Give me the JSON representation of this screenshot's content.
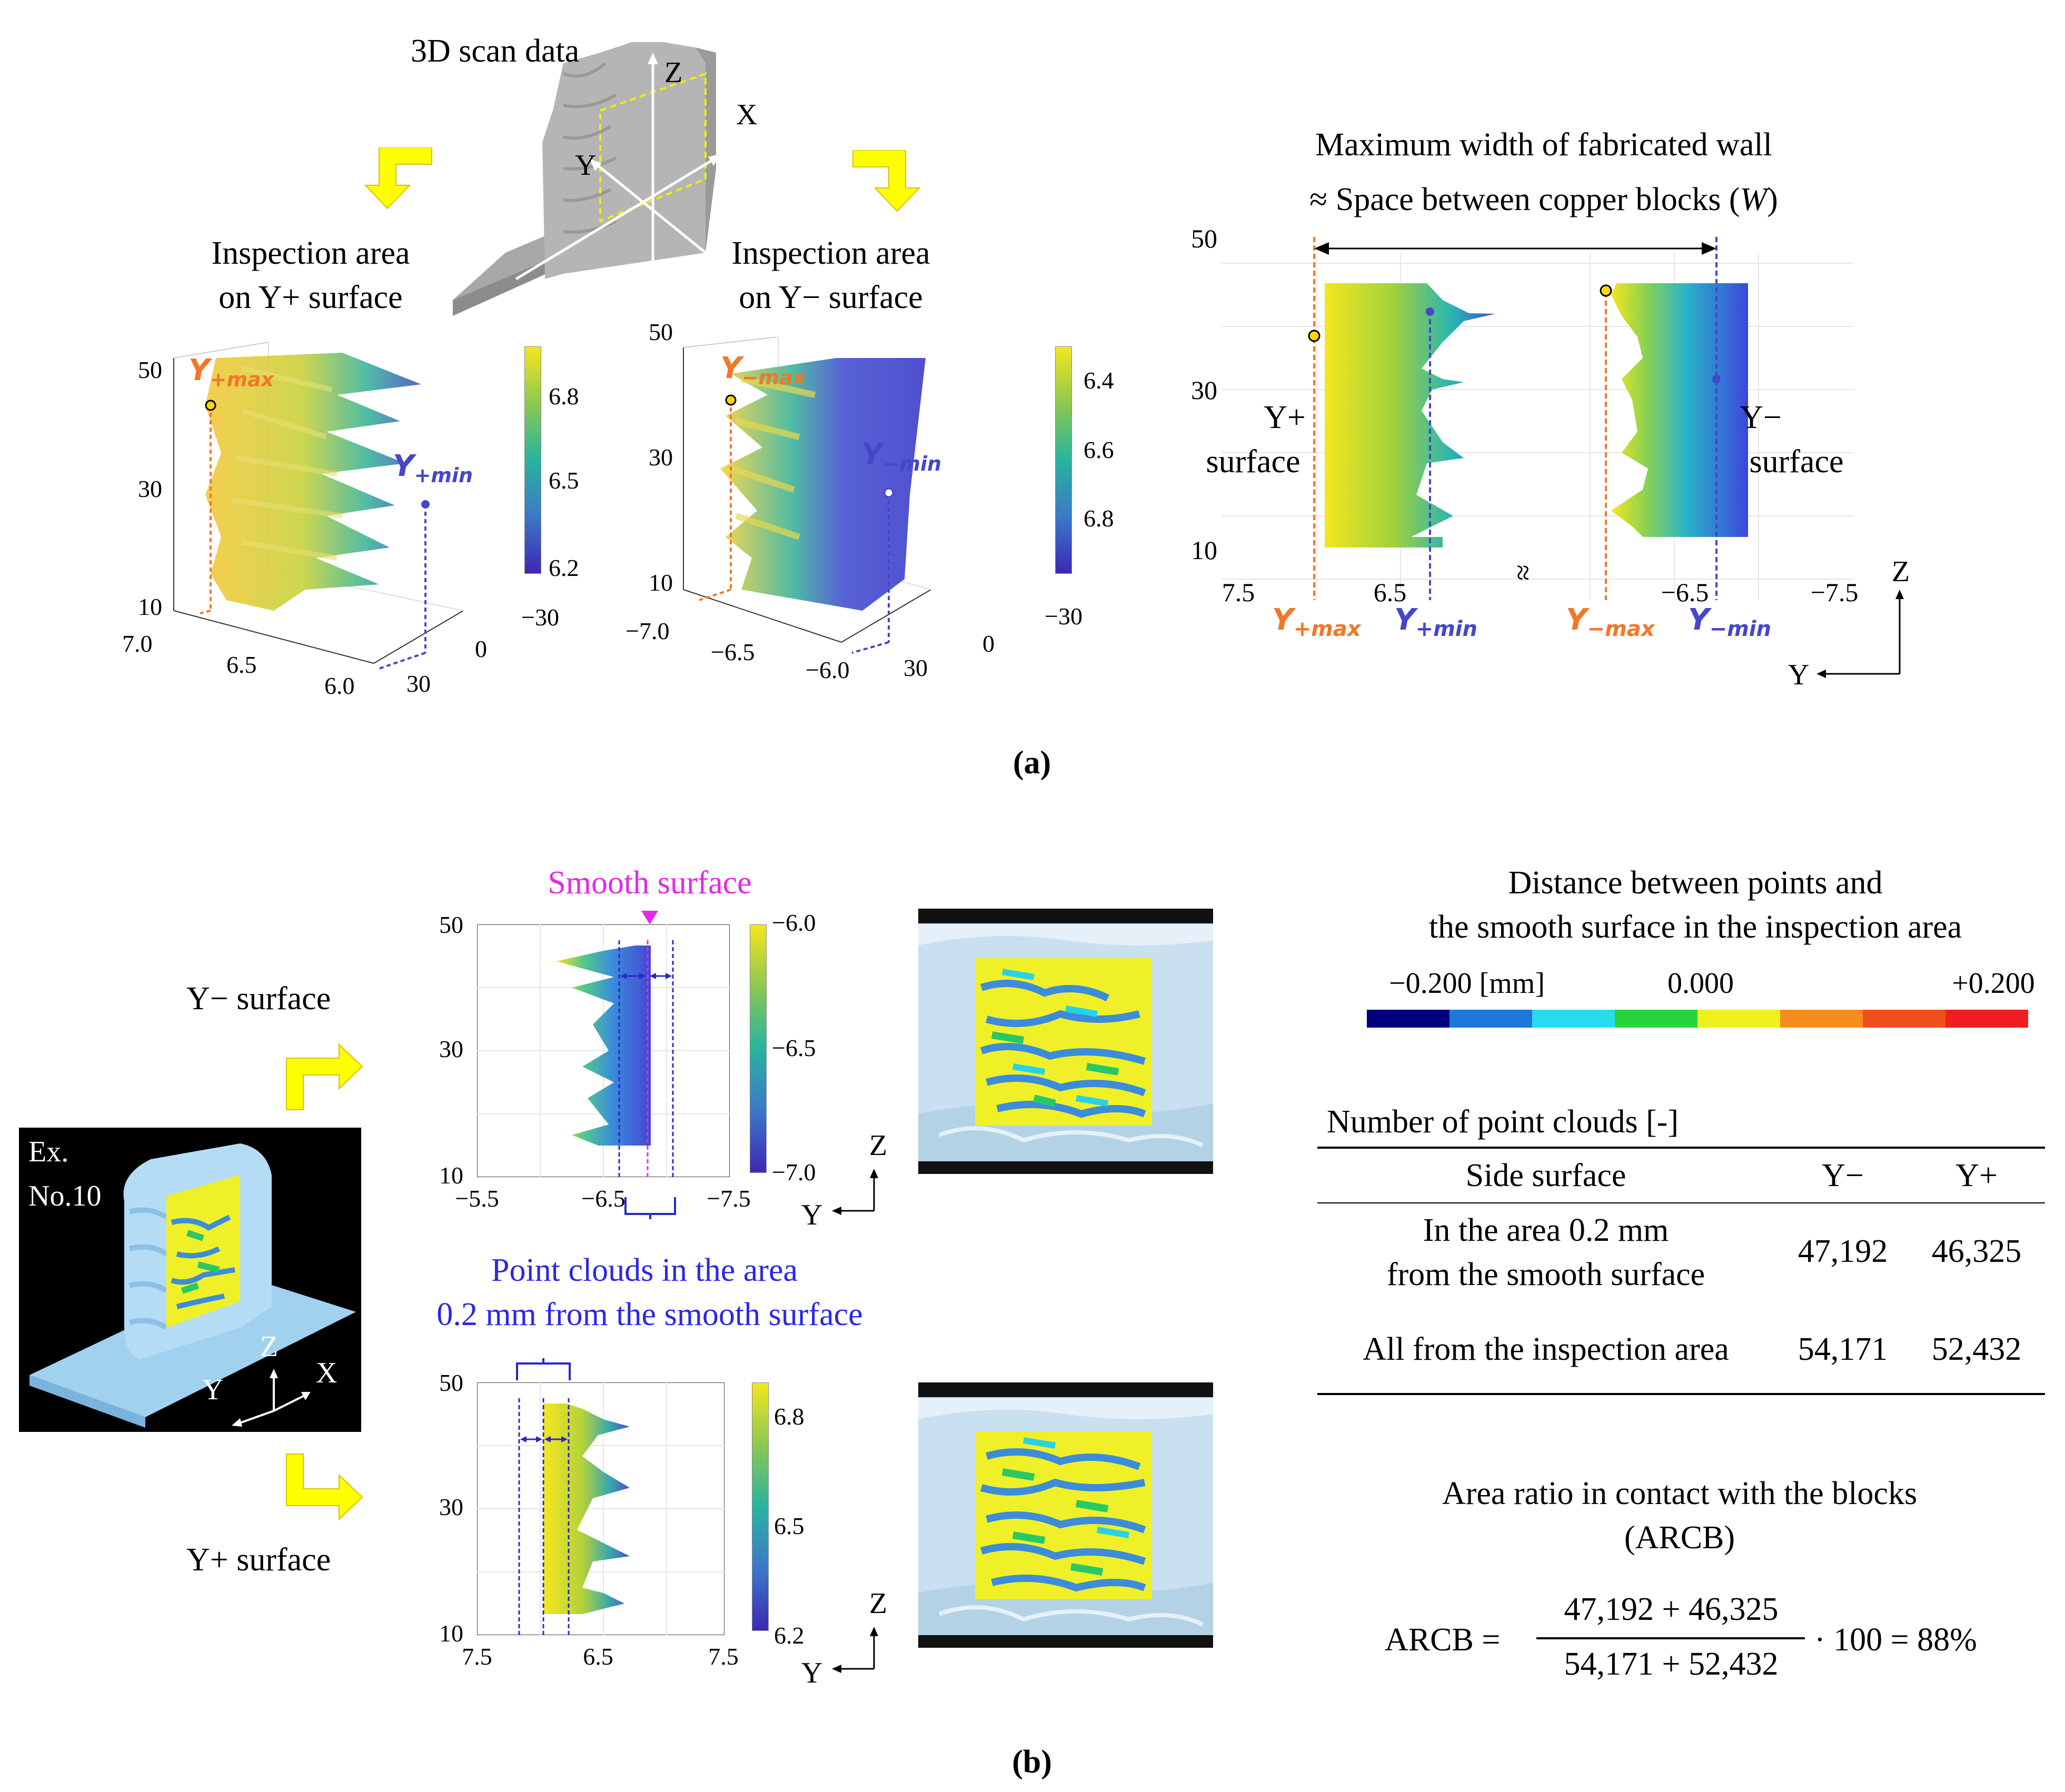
{
  "figure": {
    "panel_a_label": "(a)",
    "panel_b_label": "(b)",
    "panel_a": {
      "scan_title": "3D scan data",
      "axis_z": "Z",
      "axis_x": "X",
      "axis_y": "Y",
      "insp_plus": [
        "Inspection area",
        "on Y+ surface"
      ],
      "insp_minus": [
        "Inspection area",
        "on Y− surface"
      ],
      "plot_plus": {
        "z_ticks": [
          "50",
          "30",
          "10"
        ],
        "y_ticks": [
          "7.0",
          "6.5",
          "6.0"
        ],
        "x_ticks": [
          "−30",
          "0",
          "30"
        ],
        "cbar": [
          "6.8",
          "6.5",
          "6.2"
        ],
        "label_max": "Y",
        "label_max_sub": "+max",
        "label_min": "Y",
        "label_min_sub": "+min"
      },
      "plot_minus": {
        "z_ticks": [
          "50",
          "30",
          "10"
        ],
        "y_ticks": [
          "−7.0",
          "−6.5",
          "−6.0"
        ],
        "x_ticks": [
          "−30",
          "0",
          "30"
        ],
        "cbar": [
          "6.4",
          "6.6",
          "6.8"
        ],
        "label_max": "Y",
        "label_max_sub": "−max",
        "label_min": "Y",
        "label_min_sub": "−min"
      },
      "wall": {
        "title1": "Maximum width of fabricated wall",
        "title2_pre": "≈ Space between copper blocks (",
        "title2_var": "W",
        "title2_post": ")",
        "z_ticks": [
          "50",
          "30",
          "10"
        ],
        "y_ticks": [
          "7.5",
          "6.5",
          "−6.5",
          "−7.5"
        ],
        "break_mark": "≈",
        "label_plus": [
          "Y+",
          "surface"
        ],
        "label_minus": [
          "Y−",
          "surface"
        ],
        "bottom_labels": [
          {
            "main": "Y",
            "sub": "+max"
          },
          {
            "main": "Y",
            "sub": "+min"
          },
          {
            "main": "Y",
            "sub": "−max"
          },
          {
            "main": "Y",
            "sub": "−min"
          }
        ],
        "axis_z": "Z",
        "axis_y": "Y"
      }
    },
    "panel_b": {
      "y_minus_surface": "Y− surface",
      "y_plus_surface": "Y+ surface",
      "ex_label": [
        "Ex.",
        "No.10"
      ],
      "axis_z": "Z",
      "axis_x": "X",
      "axis_y": "Y",
      "smooth_surface": "Smooth surface",
      "top_plot": {
        "z_ticks": [
          "50",
          "30",
          "10"
        ],
        "y_ticks": [
          "−5.5",
          "−6.5",
          "−7.5"
        ],
        "cbar": [
          "−6.0",
          "−6.5",
          "−7.0"
        ]
      },
      "bottom_plot": {
        "z_ticks": [
          "50",
          "30",
          "10"
        ],
        "y_ticks": [
          "7.5",
          "6.5",
          "7.5"
        ],
        "cbar": [
          "6.8",
          "6.5",
          "6.2"
        ]
      },
      "point_clouds_note": [
        "Point clouds in the area",
        "0.2 mm from the smooth surface"
      ],
      "distance_title": [
        "Distance between points and",
        "the smooth surface in the inspection area"
      ],
      "scale_labels": [
        "−0.200 [mm]",
        "0.000",
        "+0.200"
      ],
      "scale_colors": [
        "#00007F",
        "#1E78DC",
        "#28DCF0",
        "#28D23C",
        "#F0F01E",
        "#F58C1E",
        "#F0501E",
        "#F01E1E"
      ],
      "table": {
        "caption": "Number of point clouds [-]",
        "headers": [
          "Side surface",
          "Y−",
          "Y+"
        ],
        "rows": [
          {
            "label": [
              "In the area 0.2 mm",
              "from the smooth surface"
            ],
            "y_minus": "47,192",
            "y_plus": "46,325"
          },
          {
            "label": [
              "All from the inspection area"
            ],
            "y_minus": "54,171",
            "y_plus": "52,432"
          }
        ]
      },
      "arcb_title": [
        "Area ratio in contact with the blocks",
        "(ARCB)"
      ],
      "formula": {
        "lhs": "ARCB =",
        "num": "47,192 + 46,325",
        "den": "54,171 + 52,432",
        "rhs": "· 100 = 88%"
      }
    }
  }
}
